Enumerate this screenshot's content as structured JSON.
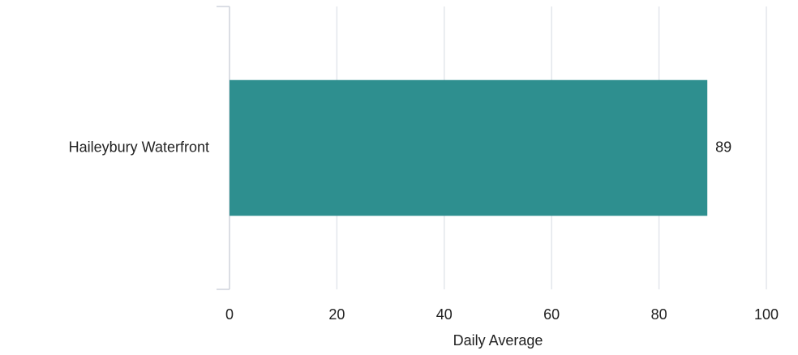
{
  "chart_data": {
    "type": "bar",
    "orientation": "horizontal",
    "categories": [
      "Haileybury Waterfront"
    ],
    "values": [
      89
    ],
    "xlabel": "Daily Average",
    "ylabel": "",
    "xlim": [
      0,
      100
    ],
    "xticks": [
      "0",
      "20",
      "40",
      "60",
      "80",
      "100"
    ],
    "data_labels": [
      "89"
    ],
    "grid": "vertical",
    "legend": "none",
    "bar_color": "#2e8f8f",
    "grid_color": "#e3e6ec",
    "axis_color": "#cfd3dc"
  }
}
